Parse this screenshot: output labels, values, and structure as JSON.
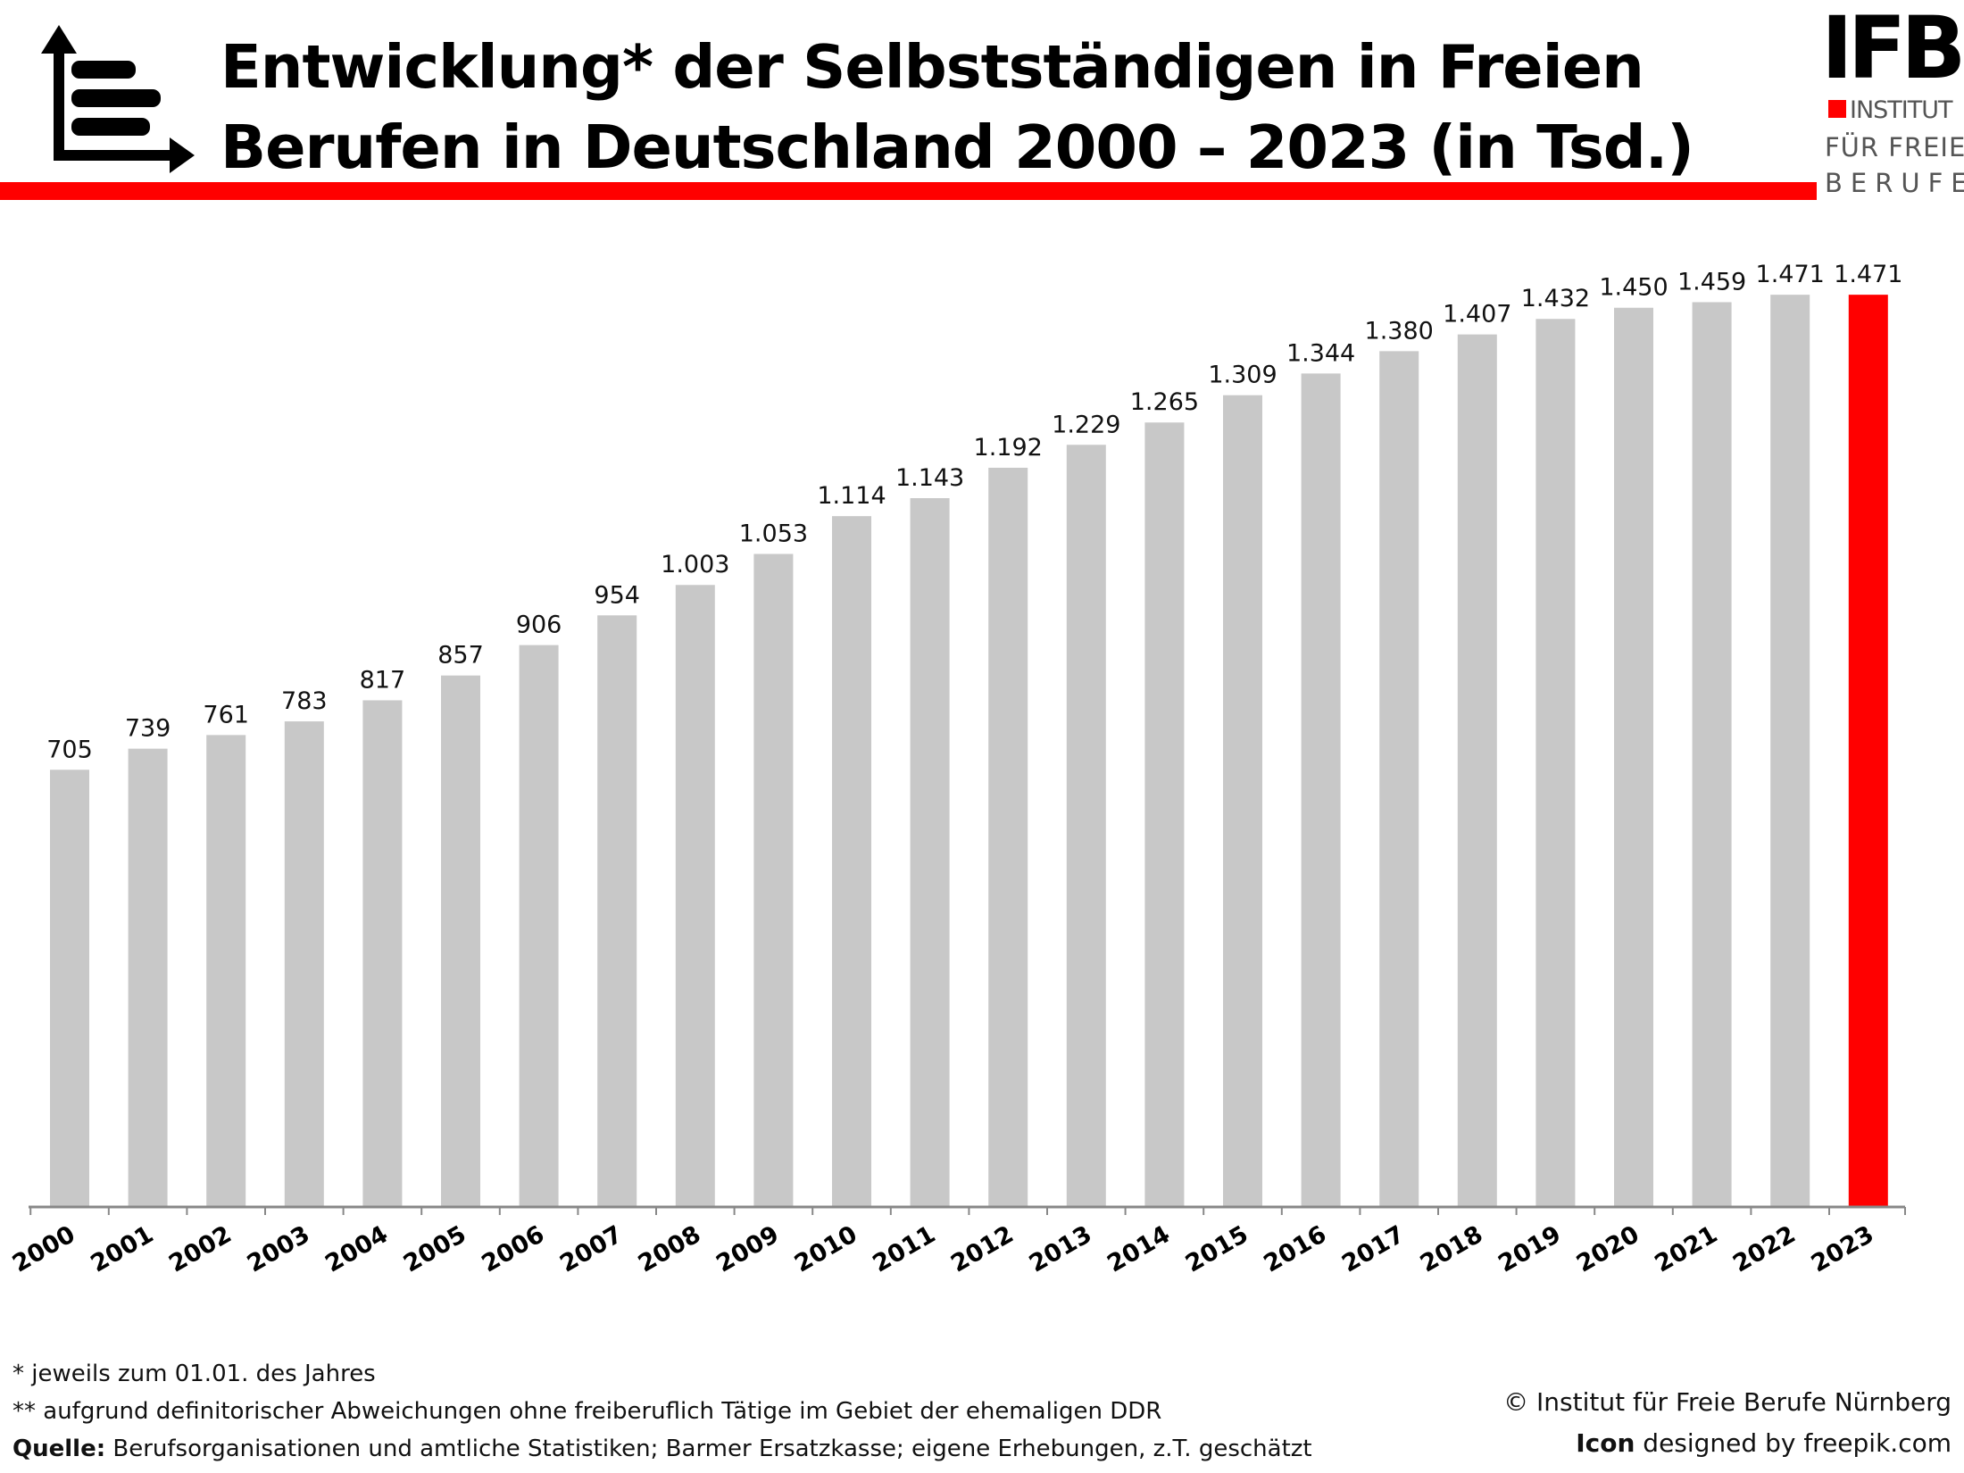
{
  "title": {
    "line1": "Entwicklung* der Selbstständigen in Freien",
    "line2": "Berufen in Deutschland 2000 – 2023 (in Tsd.)"
  },
  "logo": {
    "mark": "IFB",
    "line1": "INSTITUT",
    "line2": "FÜR FREIE",
    "line3": "BERUFE"
  },
  "icons": {
    "title_icon": "bar-chart-arrows-icon"
  },
  "colors": {
    "accent": "#ff0000",
    "bar": "#c8c8c8",
    "highlight": "#ff0000"
  },
  "chart_data": {
    "type": "bar",
    "categories": [
      "2000",
      "2001",
      "2002",
      "2003",
      "2004",
      "2005",
      "2006",
      "2007",
      "2008",
      "2009",
      "2010",
      "2011",
      "2012",
      "2013",
      "2014",
      "2015",
      "2016",
      "2017",
      "2018",
      "2019",
      "2020",
      "2021",
      "2022",
      "2023"
    ],
    "values": [
      705,
      739,
      761,
      783,
      817,
      857,
      906,
      954,
      1003,
      1053,
      1114,
      1143,
      1192,
      1229,
      1265,
      1309,
      1344,
      1380,
      1407,
      1432,
      1450,
      1459,
      1471,
      1471
    ],
    "value_labels": [
      "705",
      "739",
      "761",
      "783",
      "817",
      "857",
      "906",
      "954",
      "1.003",
      "1.053",
      "1.114",
      "1.143",
      "1.192",
      "1.229",
      "1.265",
      "1.309",
      "1.344",
      "1.380",
      "1.407",
      "1.432",
      "1.450",
      "1.459",
      "1.471",
      "1.471"
    ],
    "highlight_category": "2023",
    "ylim": [
      0,
      1500
    ],
    "grid": false,
    "legend": "none",
    "title": "",
    "xlabel": "",
    "ylabel": ""
  },
  "footer": {
    "note1": "* jeweils zum 01.01. des Jahres",
    "note2": "** aufgrund definitorischer Abweichungen ohne freiberuflich Tätige im Gebiet der ehemaligen DDR",
    "source_label": "Quelle:",
    "source_text": " Berufsorganisationen und amtliche Statistiken; Barmer Ersatzkasse; eigene Erhebungen, z.T. geschätzt",
    "copyright": "© Institut für Freie Berufe Nürnberg",
    "icon_label": "Icon",
    "icon_credit": " designed by freepik.com"
  }
}
